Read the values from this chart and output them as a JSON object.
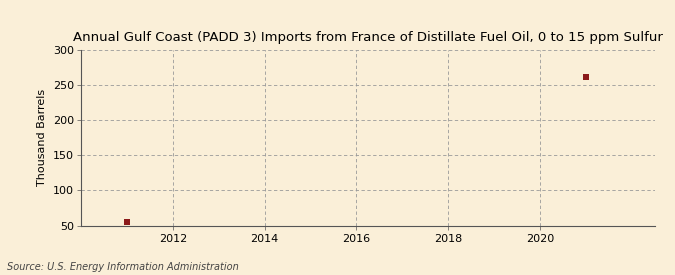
{
  "title": "Annual Gulf Coast (PADD 3) Imports from France of Distillate Fuel Oil, 0 to 15 ppm Sulfur",
  "ylabel": "Thousand Barrels",
  "source_text": "Source: U.S. Energy Information Administration",
  "background_color": "#faefd8",
  "plot_bg_color": "#faefd8",
  "data_points": [
    {
      "year": 2011,
      "value": 55
    },
    {
      "year": 2021,
      "value": 261
    }
  ],
  "marker_color": "#8b1a1a",
  "marker_size": 4,
  "xlim": [
    2010.0,
    2022.5
  ],
  "ylim": [
    50,
    300
  ],
  "yticks": [
    50,
    100,
    150,
    200,
    250,
    300
  ],
  "xticks": [
    2012,
    2014,
    2016,
    2018,
    2020
  ],
  "grid_color": "#999999",
  "title_fontsize": 9.5,
  "label_fontsize": 8,
  "tick_fontsize": 8,
  "source_fontsize": 7
}
